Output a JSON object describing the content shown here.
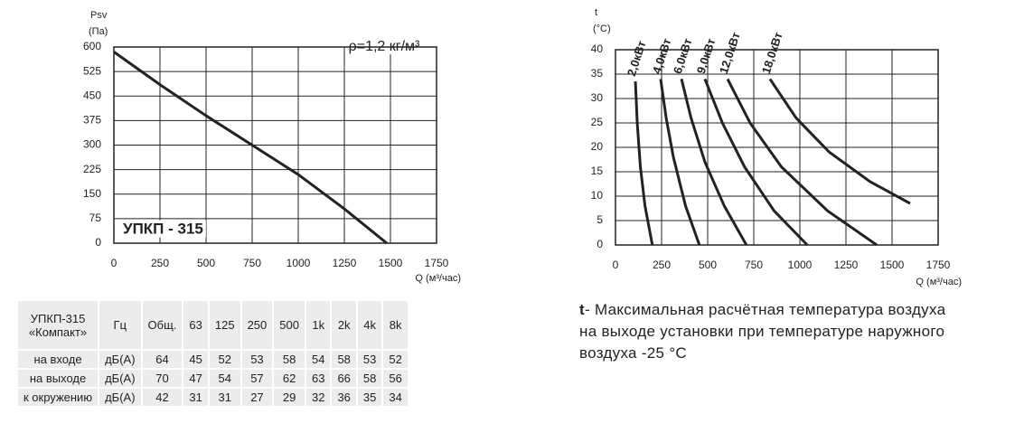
{
  "chart_data": [
    {
      "type": "line",
      "y_label": "Psv",
      "y_unit": "(Па)",
      "x_label": "Q (м³/час)",
      "annotations": [
        "ρ=1,2 кг/м³",
        "УПКП - 315"
      ],
      "x": [
        0,
        250,
        500,
        750,
        1000,
        1250,
        1480
      ],
      "series": [
        {
          "color": "#222222",
          "values": [
            585,
            485,
            390,
            300,
            210,
            105,
            0
          ]
        }
      ],
      "xlim": [
        0,
        1750
      ],
      "xticks": [
        0,
        250,
        500,
        750,
        1000,
        1250,
        1500,
        1750
      ],
      "ylim": [
        0,
        600
      ],
      "yticks": [
        0,
        75,
        150,
        225,
        300,
        375,
        450,
        525,
        600
      ],
      "grid": true
    },
    {
      "type": "line",
      "y_label": "t",
      "y_unit": "(°C)",
      "x_label": "Q (м³/час)",
      "series": [
        {
          "name": "2,0кВт",
          "color": "#222222",
          "x": [
            108,
            118,
            135,
            160,
            200
          ],
          "values": [
            33.5,
            25,
            16,
            8,
            0
          ]
        },
        {
          "name": "4,0кВт",
          "color": "#222222",
          "x": [
            245,
            275,
            314,
            380,
            455
          ],
          "values": [
            34,
            26,
            18,
            8,
            0
          ]
        },
        {
          "name": "6,0кВт",
          "color": "#222222",
          "x": [
            358,
            410,
            485,
            590,
            710
          ],
          "values": [
            34,
            26,
            17,
            8,
            0
          ]
        },
        {
          "name": "9,0кВт",
          "color": "#222222",
          "x": [
            485,
            580,
            700,
            860,
            1040
          ],
          "values": [
            34,
            25,
            16,
            7,
            0
          ]
        },
        {
          "name": "12,0кВт",
          "color": "#222222",
          "x": [
            608,
            730,
            900,
            1150,
            1417
          ],
          "values": [
            34,
            25,
            16,
            7,
            0
          ]
        },
        {
          "name": "18,0кВт",
          "color": "#222222",
          "x": [
            838,
            980,
            1160,
            1380,
            1598
          ],
          "values": [
            34,
            26,
            19,
            13,
            8.5
          ]
        }
      ],
      "xlim": [
        0,
        1750
      ],
      "xticks": [
        0,
        250,
        500,
        750,
        1000,
        1250,
        1500,
        1750
      ],
      "ylim": [
        0,
        40
      ],
      "yticks": [
        0,
        5,
        10,
        15,
        20,
        25,
        30,
        35,
        40
      ],
      "grid": true
    }
  ],
  "table": {
    "header": [
      [
        "УПКП-315",
        "«Компакт»"
      ],
      "Гц",
      "Общ.",
      "63",
      "125",
      "250",
      "500",
      "1k",
      "2k",
      "4k",
      "8k"
    ],
    "rows": [
      [
        "на входе",
        "дБ(А)",
        64,
        45,
        52,
        53,
        58,
        54,
        58,
        53,
        52
      ],
      [
        "на выходе",
        "дБ(А)",
        70,
        47,
        54,
        57,
        62,
        63,
        66,
        58,
        56
      ],
      [
        "к окружению",
        "дБ(А)",
        42,
        31,
        31,
        27,
        29,
        32,
        36,
        35,
        34
      ]
    ]
  },
  "caption": {
    "term": "t",
    "text": "- Максимальная расчётная температура воздуха на выходе установки при температуре наружного воздуха -25 °С"
  }
}
